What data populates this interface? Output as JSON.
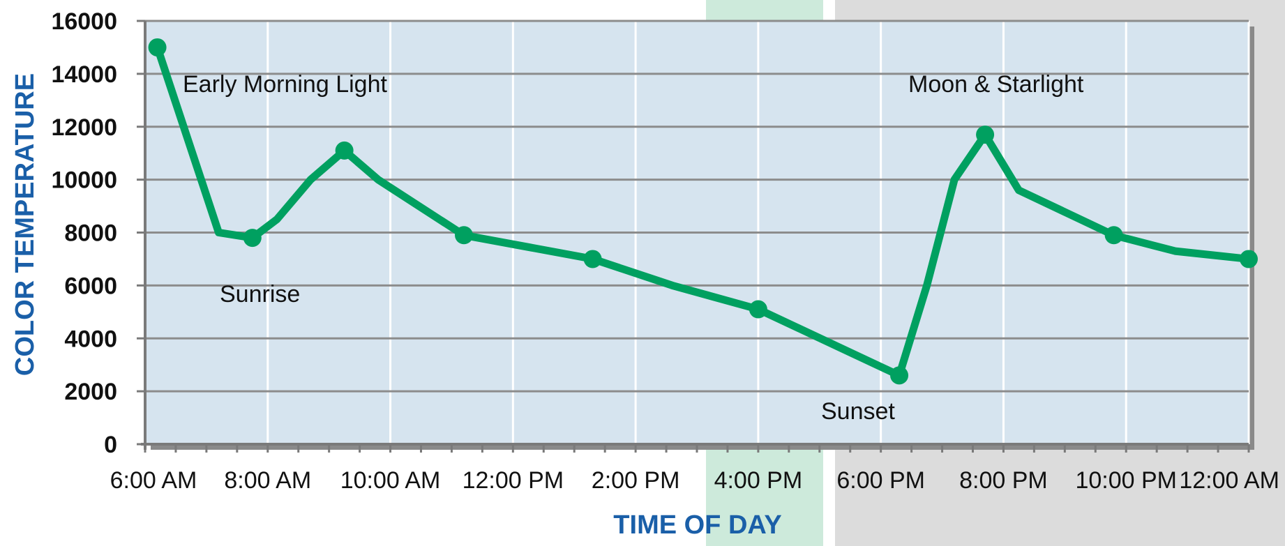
{
  "chart_data": {
    "type": "line",
    "title": "",
    "xlabel": "TIME OF DAY",
    "ylabel": "COLOR TEMPERATURE",
    "ylim": [
      0,
      16000
    ],
    "yticks": [
      "0",
      "2000",
      "4000",
      "6000",
      "8000",
      "10000",
      "12000",
      "14000",
      "16000"
    ],
    "xlim_hours": [
      6,
      24
    ],
    "xticks": [
      "6:00 AM",
      "8:00 AM",
      "10:00 AM",
      "12:00 PM",
      "2:00 PM",
      "4:00 PM",
      "6:00 PM",
      "8:00 PM",
      "10:00 PM",
      "12:00 AM"
    ],
    "grid": true,
    "series": [
      {
        "name": "",
        "color": "#00a060",
        "x_hours": [
          6.2,
          7.2,
          7.75,
          8.15,
          8.7,
          9.25,
          9.8,
          11.2,
          13.3,
          14.6,
          16.0,
          18.3,
          18.75,
          19.2,
          19.7,
          20.25,
          21.8,
          22.8,
          24.0
        ],
        "values": [
          15000,
          8000,
          7800,
          8500,
          10000,
          11100,
          10000,
          7900,
          7000,
          6000,
          5100,
          2600,
          6000,
          10000,
          11700,
          9600,
          7900,
          7300,
          7000
        ],
        "marker_indices": [
          0,
          2,
          5,
          7,
          8,
          10,
          11,
          14,
          16,
          18
        ]
      }
    ],
    "annotations": [
      {
        "text": "Early Morning Light"
      },
      {
        "text": "Sunrise"
      },
      {
        "text": "Sunset"
      },
      {
        "text": "Moon & Starlight"
      }
    ],
    "background_bands": [
      {
        "label": "",
        "color": "#cdeadb"
      },
      {
        "label": "",
        "color": "#dcdcdc"
      }
    ],
    "colors": {
      "plot_bg": "#d6e4ef",
      "axis_title": "#1a5fa8",
      "line": "#00a060",
      "grid_horizontal": "#8c8c8c",
      "grid_vertical": "#ffffff"
    }
  }
}
